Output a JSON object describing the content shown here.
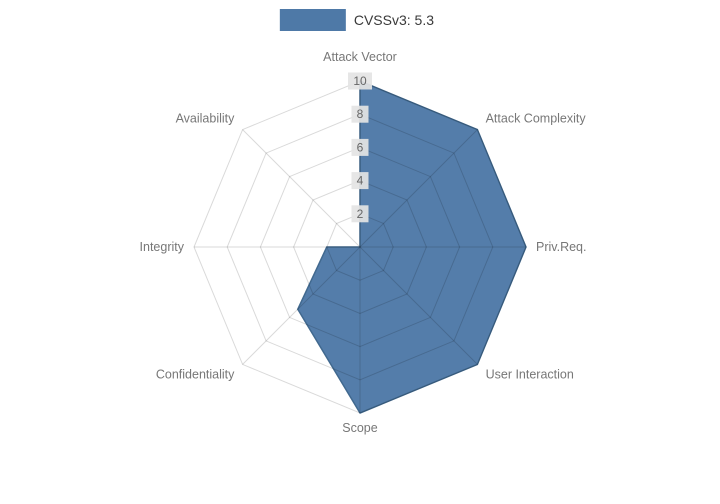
{
  "legend": {
    "label": "CVSSv3: 5.3",
    "swatch_color": "#4e79a7"
  },
  "chart_data": {
    "type": "radar",
    "title": "",
    "categories": [
      "Attack Vector",
      "Attack Complexity",
      "Priv.Req.",
      "User Interaction",
      "Scope",
      "Confidentiality",
      "Integrity",
      "Availability"
    ],
    "series": [
      {
        "name": "CVSSv3: 5.3",
        "values": [
          10,
          10,
          10,
          10,
          10,
          5.3,
          2,
          0
        ]
      }
    ],
    "radial_ticks": [
      2,
      4,
      6,
      8,
      10
    ],
    "rmax": 10,
    "grid": true,
    "grid_shape": "polygon",
    "legend_position": "top",
    "colors": {
      "fill": "#4e79a7",
      "stroke": "#41698f",
      "grid": "rgba(0,0,0,0.15)",
      "axis_label": "#777777",
      "tick_label": "#666666",
      "tick_backdrop": "#e4e4e4"
    }
  }
}
